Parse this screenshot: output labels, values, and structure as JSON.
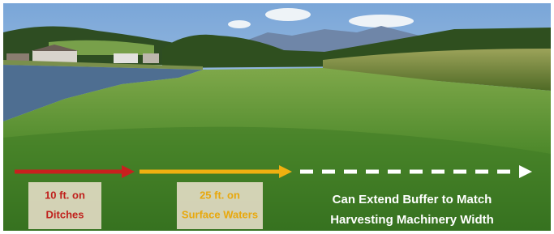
{
  "labels": [
    {
      "lines": [
        "10 ft. on",
        "Ditches"
      ]
    },
    {
      "lines": [
        "25 ft. on",
        "Surface Waters"
      ]
    }
  ],
  "note": {
    "lines": [
      "Can Extend Buffer to Match",
      "Harvesting Machinery Width"
    ]
  }
}
